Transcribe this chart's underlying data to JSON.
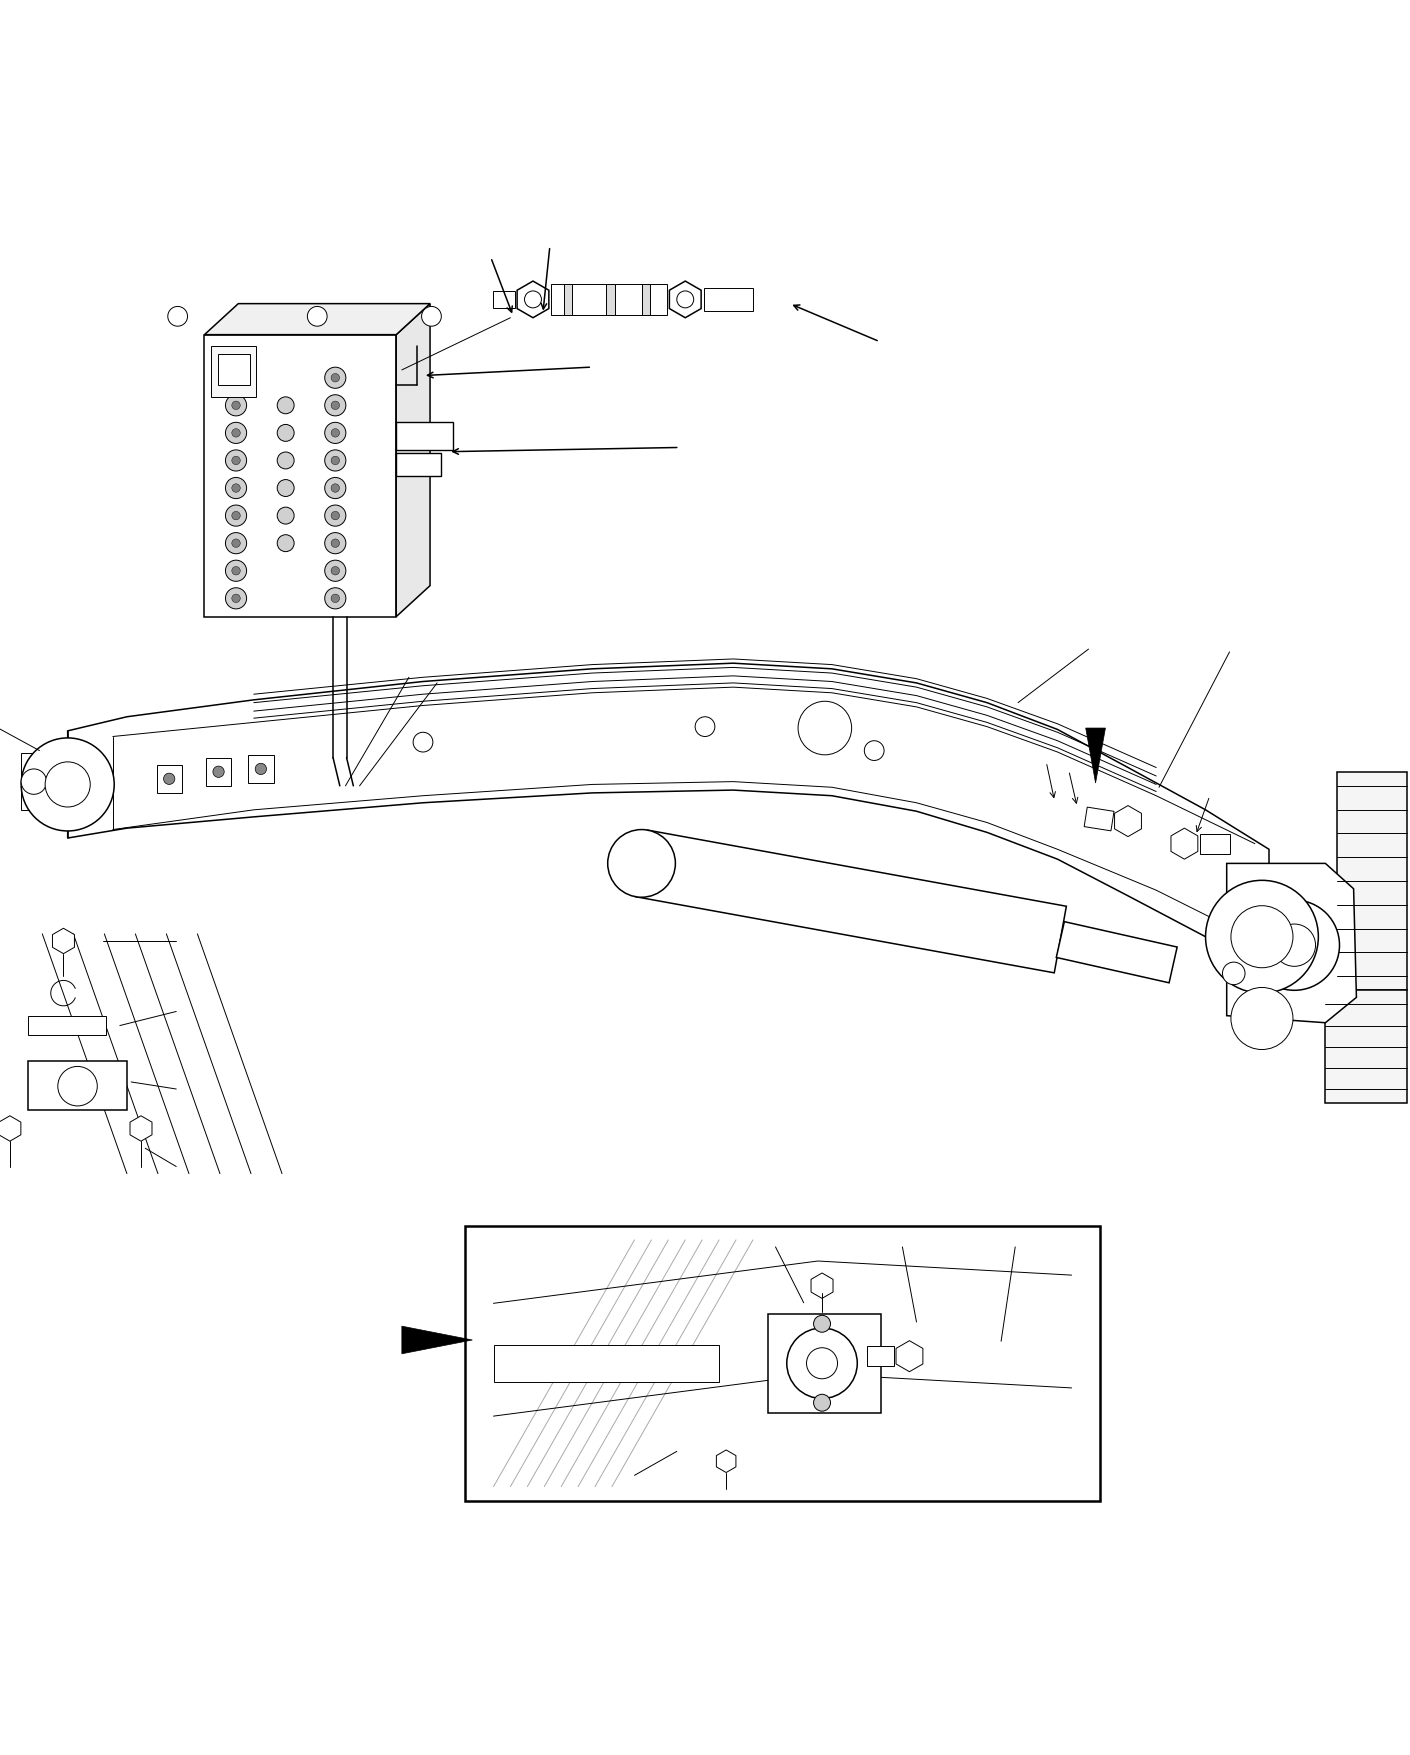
{
  "bg_color": "#ffffff",
  "line_color": "#000000",
  "figsize": [
    14.1,
    17.55
  ],
  "dpi": 100,
  "lw_thin": 0.7,
  "lw_med": 1.1,
  "lw_thick": 1.8
}
